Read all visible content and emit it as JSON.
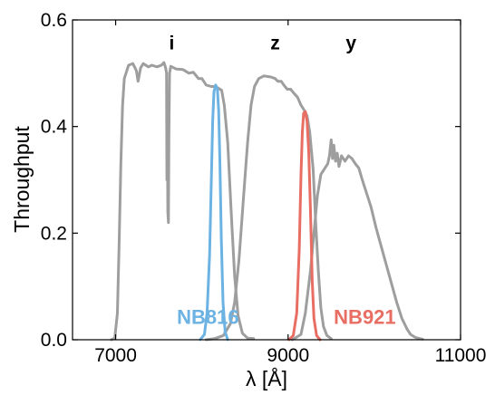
{
  "chart_data": {
    "type": "line",
    "title": "",
    "xlabel": "λ [Å]",
    "ylabel": "Throughput",
    "xlim": [
      6500,
      11000
    ],
    "ylim": [
      0.0,
      0.6
    ],
    "xticks": [
      7000,
      9000,
      11000
    ],
    "xtick_labels": [
      "7000",
      "9000",
      "11000"
    ],
    "yticks": [
      0.0,
      0.2,
      0.4,
      0.6
    ],
    "ytick_labels": [
      "0.0",
      "0.2",
      "0.4",
      "0.6"
    ],
    "grid": false,
    "legend": "none",
    "annotations": [
      {
        "text": "i",
        "x": 7650,
        "y": 0.545,
        "color": "#000000"
      },
      {
        "text": "z",
        "x": 8850,
        "y": 0.545,
        "color": "#000000"
      },
      {
        "text": "y",
        "x": 9730,
        "y": 0.545,
        "color": "#000000"
      },
      {
        "text": "NB816",
        "x": 7710,
        "y": 0.03,
        "color": "#6cb3e3"
      },
      {
        "text": "NB921",
        "x": 9530,
        "y": 0.03,
        "color": "#e86e63"
      }
    ],
    "series": [
      {
        "color": "#9e9e9e",
        "points": [
          [
            6950,
            0
          ],
          [
            6990,
            0.003
          ],
          [
            7020,
            0.05
          ],
          [
            7040,
            0.18
          ],
          [
            7060,
            0.33
          ],
          [
            7080,
            0.44
          ],
          [
            7100,
            0.49
          ],
          [
            7150,
            0.515
          ],
          [
            7200,
            0.518
          ],
          [
            7240,
            0.505
          ],
          [
            7260,
            0.485
          ],
          [
            7290,
            0.51
          ],
          [
            7320,
            0.518
          ],
          [
            7380,
            0.512
          ],
          [
            7420,
            0.515
          ],
          [
            7480,
            0.512
          ],
          [
            7530,
            0.515
          ],
          [
            7560,
            0.52
          ],
          [
            7580,
            0.51
          ],
          [
            7590,
            0.5
          ],
          [
            7595,
            0.3
          ],
          [
            7600,
            0.42
          ],
          [
            7605,
            0.24
          ],
          [
            7612,
            0.22
          ],
          [
            7618,
            0.38
          ],
          [
            7625,
            0.5
          ],
          [
            7640,
            0.513
          ],
          [
            7700,
            0.508
          ],
          [
            7780,
            0.507
          ],
          [
            7850,
            0.5
          ],
          [
            7900,
            0.502
          ],
          [
            7960,
            0.49
          ],
          [
            8000,
            0.49
          ],
          [
            8050,
            0.478
          ],
          [
            8110,
            0.475
          ],
          [
            8160,
            0.475
          ],
          [
            8230,
            0.468
          ],
          [
            8260,
            0.44
          ],
          [
            8300,
            0.37
          ],
          [
            8340,
            0.24
          ],
          [
            8380,
            0.12
          ],
          [
            8420,
            0.045
          ],
          [
            8470,
            0.012
          ],
          [
            8530,
            0.003
          ],
          [
            8600,
            0.002
          ]
        ]
      },
      {
        "color": "#9e9e9e",
        "points": [
          [
            8050,
            0
          ],
          [
            8150,
            0.002
          ],
          [
            8250,
            0.008
          ],
          [
            8330,
            0.03
          ],
          [
            8380,
            0.07
          ],
          [
            8430,
            0.15
          ],
          [
            8480,
            0.26
          ],
          [
            8530,
            0.37
          ],
          [
            8570,
            0.44
          ],
          [
            8610,
            0.475
          ],
          [
            8660,
            0.49
          ],
          [
            8720,
            0.495
          ],
          [
            8800,
            0.493
          ],
          [
            8850,
            0.49
          ],
          [
            8880,
            0.485
          ],
          [
            8920,
            0.485
          ],
          [
            8950,
            0.478
          ],
          [
            8990,
            0.47
          ],
          [
            9030,
            0.47
          ],
          [
            9070,
            0.462
          ],
          [
            9110,
            0.455
          ],
          [
            9150,
            0.44
          ],
          [
            9190,
            0.43
          ],
          [
            9220,
            0.42
          ],
          [
            9250,
            0.39
          ],
          [
            9290,
            0.32
          ],
          [
            9320,
            0.22
          ],
          [
            9350,
            0.13
          ],
          [
            9380,
            0.06
          ],
          [
            9410,
            0.025
          ],
          [
            9450,
            0.008
          ],
          [
            9500,
            0.002
          ]
        ]
      },
      {
        "color": "#9e9e9e",
        "points": [
          [
            9050,
            0
          ],
          [
            9150,
            0.01
          ],
          [
            9200,
            0.05
          ],
          [
            9260,
            0.13
          ],
          [
            9300,
            0.2
          ],
          [
            9340,
            0.27
          ],
          [
            9380,
            0.31
          ],
          [
            9420,
            0.32
          ],
          [
            9460,
            0.33
          ],
          [
            9480,
            0.345
          ],
          [
            9500,
            0.375
          ],
          [
            9515,
            0.34
          ],
          [
            9530,
            0.365
          ],
          [
            9550,
            0.335
          ],
          [
            9570,
            0.35
          ],
          [
            9590,
            0.325
          ],
          [
            9620,
            0.345
          ],
          [
            9660,
            0.335
          ],
          [
            9700,
            0.345
          ],
          [
            9740,
            0.34
          ],
          [
            9780,
            0.33
          ],
          [
            9820,
            0.322
          ],
          [
            9860,
            0.3
          ],
          [
            9900,
            0.28
          ],
          [
            9960,
            0.25
          ],
          [
            10020,
            0.21
          ],
          [
            10080,
            0.175
          ],
          [
            10140,
            0.14
          ],
          [
            10200,
            0.105
          ],
          [
            10260,
            0.07
          ],
          [
            10320,
            0.04
          ],
          [
            10380,
            0.02
          ],
          [
            10420,
            0.01
          ],
          [
            10480,
            0.004
          ],
          [
            10560,
            0.001
          ]
        ]
      },
      {
        "color": "#6cb3e3",
        "points": [
          [
            7980,
            0
          ],
          [
            8030,
            0.01
          ],
          [
            8060,
            0.05
          ],
          [
            8090,
            0.16
          ],
          [
            8110,
            0.3
          ],
          [
            8125,
            0.41
          ],
          [
            8140,
            0.465
          ],
          [
            8160,
            0.478
          ],
          [
            8180,
            0.47
          ],
          [
            8195,
            0.43
          ],
          [
            8210,
            0.33
          ],
          [
            8225,
            0.19
          ],
          [
            8245,
            0.07
          ],
          [
            8270,
            0.015
          ],
          [
            8300,
            0
          ]
        ]
      },
      {
        "color": "#e86e63",
        "points": [
          [
            9010,
            0
          ],
          [
            9060,
            0.008
          ],
          [
            9100,
            0.05
          ],
          [
            9130,
            0.17
          ],
          [
            9150,
            0.31
          ],
          [
            9165,
            0.39
          ],
          [
            9180,
            0.425
          ],
          [
            9200,
            0.428
          ],
          [
            9220,
            0.41
          ],
          [
            9240,
            0.35
          ],
          [
            9260,
            0.24
          ],
          [
            9280,
            0.11
          ],
          [
            9300,
            0.04
          ],
          [
            9330,
            0.008
          ],
          [
            9370,
            0
          ]
        ]
      }
    ]
  }
}
